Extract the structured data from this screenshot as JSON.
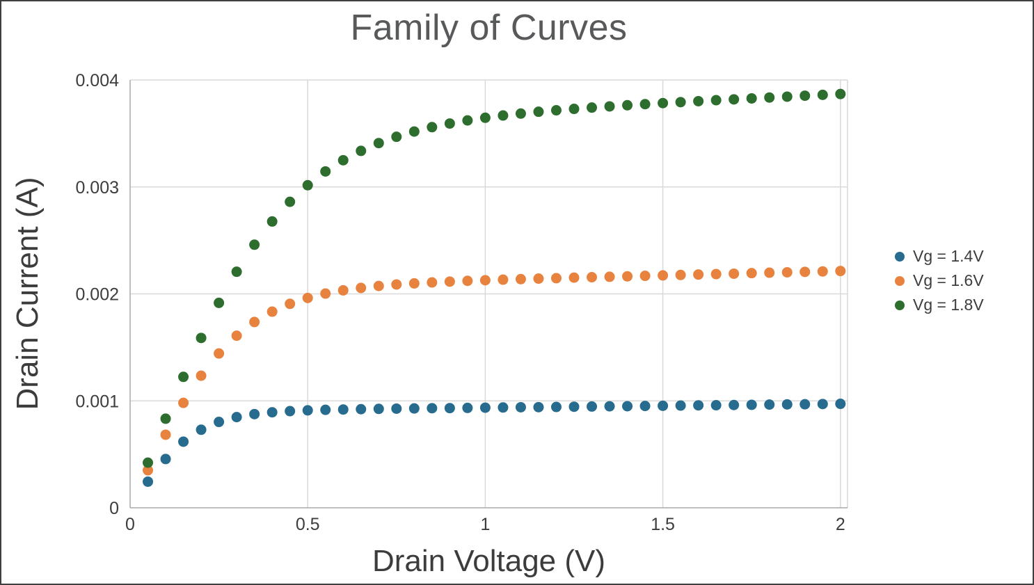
{
  "title": "Family of Curves",
  "chart_data": {
    "type": "scatter",
    "title": "Family of Curves",
    "xlabel": "Drain Voltage (V)",
    "ylabel": "Drain Current (A)",
    "xlim": [
      0,
      2.02
    ],
    "ylim": [
      0,
      0.004
    ],
    "x_ticks": [
      0,
      0.5,
      1,
      1.5,
      2
    ],
    "x_tick_labels": [
      "0",
      "0.5",
      "1",
      "1.5",
      "2"
    ],
    "y_ticks": [
      0,
      0.001,
      0.002,
      0.003,
      0.004
    ],
    "y_tick_labels": [
      "0",
      "0.001",
      "0.002",
      "0.003",
      "0.004"
    ],
    "grid": true,
    "legend_position": "right",
    "marker_size": 7.5,
    "x": [
      0.05,
      0.1,
      0.15,
      0.2,
      0.25,
      0.3,
      0.35,
      0.4,
      0.45,
      0.5,
      0.55,
      0.6,
      0.65,
      0.7,
      0.75,
      0.8,
      0.85,
      0.9,
      0.95,
      1.0,
      1.05,
      1.1,
      1.15,
      1.2,
      1.25,
      1.3,
      1.35,
      1.4,
      1.45,
      1.5,
      1.55,
      1.6,
      1.65,
      1.7,
      1.75,
      1.8,
      1.85,
      1.9,
      1.95,
      2.0
    ],
    "series": [
      {
        "name": "Vg = 1.4V",
        "color": "#276b8e",
        "values": [
          0.000244,
          0.000456,
          0.000618,
          0.00073,
          0.000803,
          0.000848,
          0.000876,
          0.000893,
          0.000904,
          0.000911,
          0.000916,
          0.000919,
          0.000922,
          0.000925,
          0.000927,
          0.000929,
          0.000931,
          0.000932,
          0.000934,
          0.000936,
          0.000938,
          0.00094,
          0.000941,
          0.000943,
          0.000945,
          0.000947,
          0.000949,
          0.00095,
          0.000952,
          0.000954,
          0.000956,
          0.000958,
          0.000959,
          0.000961,
          0.000963,
          0.000965,
          0.000967,
          0.000968,
          0.00097,
          0.000972
        ]
      },
      {
        "name": "Vg = 1.6V",
        "color": "#e8833f",
        "values": [
          0.000351,
          0.000683,
          0.000981,
          0.001235,
          0.001443,
          0.001609,
          0.001737,
          0.001834,
          0.001907,
          0.001962,
          0.002003,
          0.002033,
          0.002056,
          0.002074,
          0.002088,
          0.002098,
          0.002107,
          0.002115,
          0.002122,
          0.002128,
          0.002133,
          0.002138,
          0.002143,
          0.002147,
          0.002152,
          0.002156,
          0.00216,
          0.002164,
          0.002169,
          0.002173,
          0.002177,
          0.002181,
          0.002185,
          0.002189,
          0.002194,
          0.002198,
          0.002202,
          0.002206,
          0.00221,
          0.002214
        ]
      },
      {
        "name": "Vg = 1.8V",
        "color": "#2d6e2e",
        "values": [
          0.000422,
          0.000833,
          0.001224,
          0.001588,
          0.001916,
          0.002207,
          0.00246,
          0.002677,
          0.002861,
          0.003016,
          0.003145,
          0.00325,
          0.003337,
          0.00341,
          0.003469,
          0.003518,
          0.003559,
          0.003593,
          0.003622,
          0.003647,
          0.003668,
          0.003686,
          0.003703,
          0.003717,
          0.00373,
          0.003742,
          0.003753,
          0.003764,
          0.003774,
          0.003784,
          0.003793,
          0.003802,
          0.003811,
          0.003819,
          0.003828,
          0.003836,
          0.003844,
          0.003853,
          0.003861,
          0.003869
        ]
      }
    ]
  }
}
